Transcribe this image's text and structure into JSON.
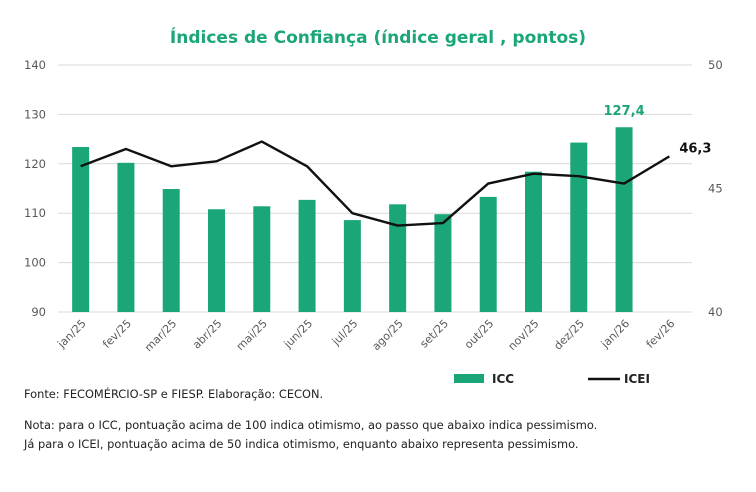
{
  "chart_data": {
    "type": "bar",
    "title": "Índices de Confiança (índice geral , pontos)",
    "categories": [
      "jan/25",
      "fev/25",
      "mar/25",
      "abr/25",
      "mai/25",
      "jun/25",
      "jul/25",
      "ago/25",
      "set/25",
      "out/25",
      "nov/25",
      "dez/25",
      "jan/26",
      "fev/26"
    ],
    "series": [
      {
        "name": "ICC",
        "type": "bar",
        "axis": "left",
        "color": "#1BA67A",
        "values": [
          123.4,
          120.2,
          114.9,
          110.8,
          111.4,
          112.7,
          108.6,
          111.8,
          109.8,
          113.3,
          118.4,
          124.3,
          127.4,
          null
        ],
        "last_label": "127,4"
      },
      {
        "name": "ICEI",
        "type": "line",
        "axis": "right",
        "color": "#111111",
        "values": [
          45.9,
          46.6,
          45.9,
          46.1,
          46.9,
          45.9,
          44.0,
          43.5,
          43.6,
          45.2,
          45.6,
          45.5,
          45.2,
          46.3
        ],
        "last_label": "46,3"
      }
    ],
    "y_left": {
      "min": 90,
      "max": 140,
      "ticks": [
        90,
        100,
        110,
        120,
        130,
        140
      ]
    },
    "y_right": {
      "min": 40,
      "max": 50,
      "ticks": [
        40,
        45,
        50
      ]
    },
    "grid": true,
    "legend_position": "bottom",
    "colors": {
      "title": "#1BA67A",
      "grid": "#d9d9d9",
      "axis_text": "#595959",
      "icc_label": "#1BA67A",
      "icei_label": "#111111"
    }
  },
  "footer": {
    "source": "Fonte: FECOMÉRCIO-SP e FIESP. Elaboração: CECON.",
    "note_line1": "Nota: para o ICC, pontuação acima de 100 indica otimismo, ao passo que abaixo indica pessimismo.",
    "note_line2": "Já para o ICEI, pontuação acima de 50 indica otimismo, enquanto abaixo representa pessimismo."
  }
}
